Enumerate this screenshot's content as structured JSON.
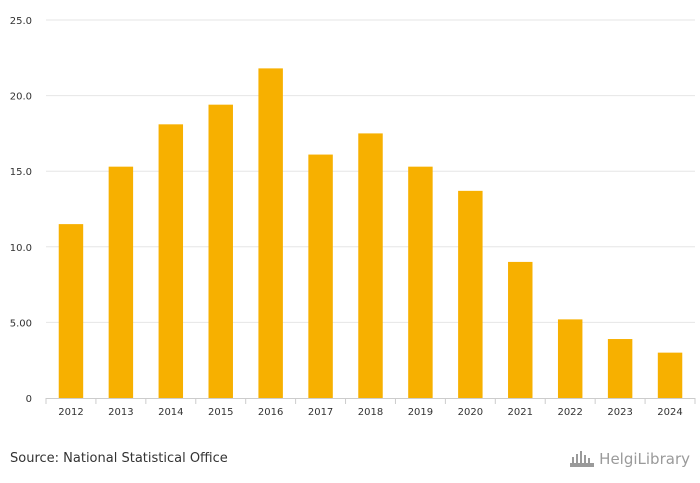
{
  "chart_data": {
    "type": "bar",
    "title": "",
    "xlabel": "",
    "ylabel": "",
    "categories": [
      "2012",
      "2013",
      "2014",
      "2015",
      "2016",
      "2017",
      "2018",
      "2019",
      "2020",
      "2021",
      "2022",
      "2023",
      "2024"
    ],
    "values": [
      11.5,
      15.3,
      18.1,
      19.4,
      21.8,
      16.1,
      17.5,
      15.3,
      13.7,
      9.0,
      5.2,
      3.9,
      3.0
    ],
    "ylim": [
      0,
      25
    ],
    "yticks": [
      0,
      5,
      10,
      15,
      20,
      25
    ],
    "ytick_labels": [
      "0",
      "5.00",
      "10.0",
      "15.0",
      "20.0",
      "25.0"
    ],
    "grid": true,
    "bar_color": "#F7B000"
  },
  "footer": {
    "source": "Source: National Statistical Office",
    "brand": "HelgiLibrary"
  },
  "colors": {
    "bar": "#F7B000",
    "grid": "#E6E6E6",
    "axis": "#CCCCCC",
    "tick_text": "#333333",
    "brand": "#9A9A9A"
  }
}
